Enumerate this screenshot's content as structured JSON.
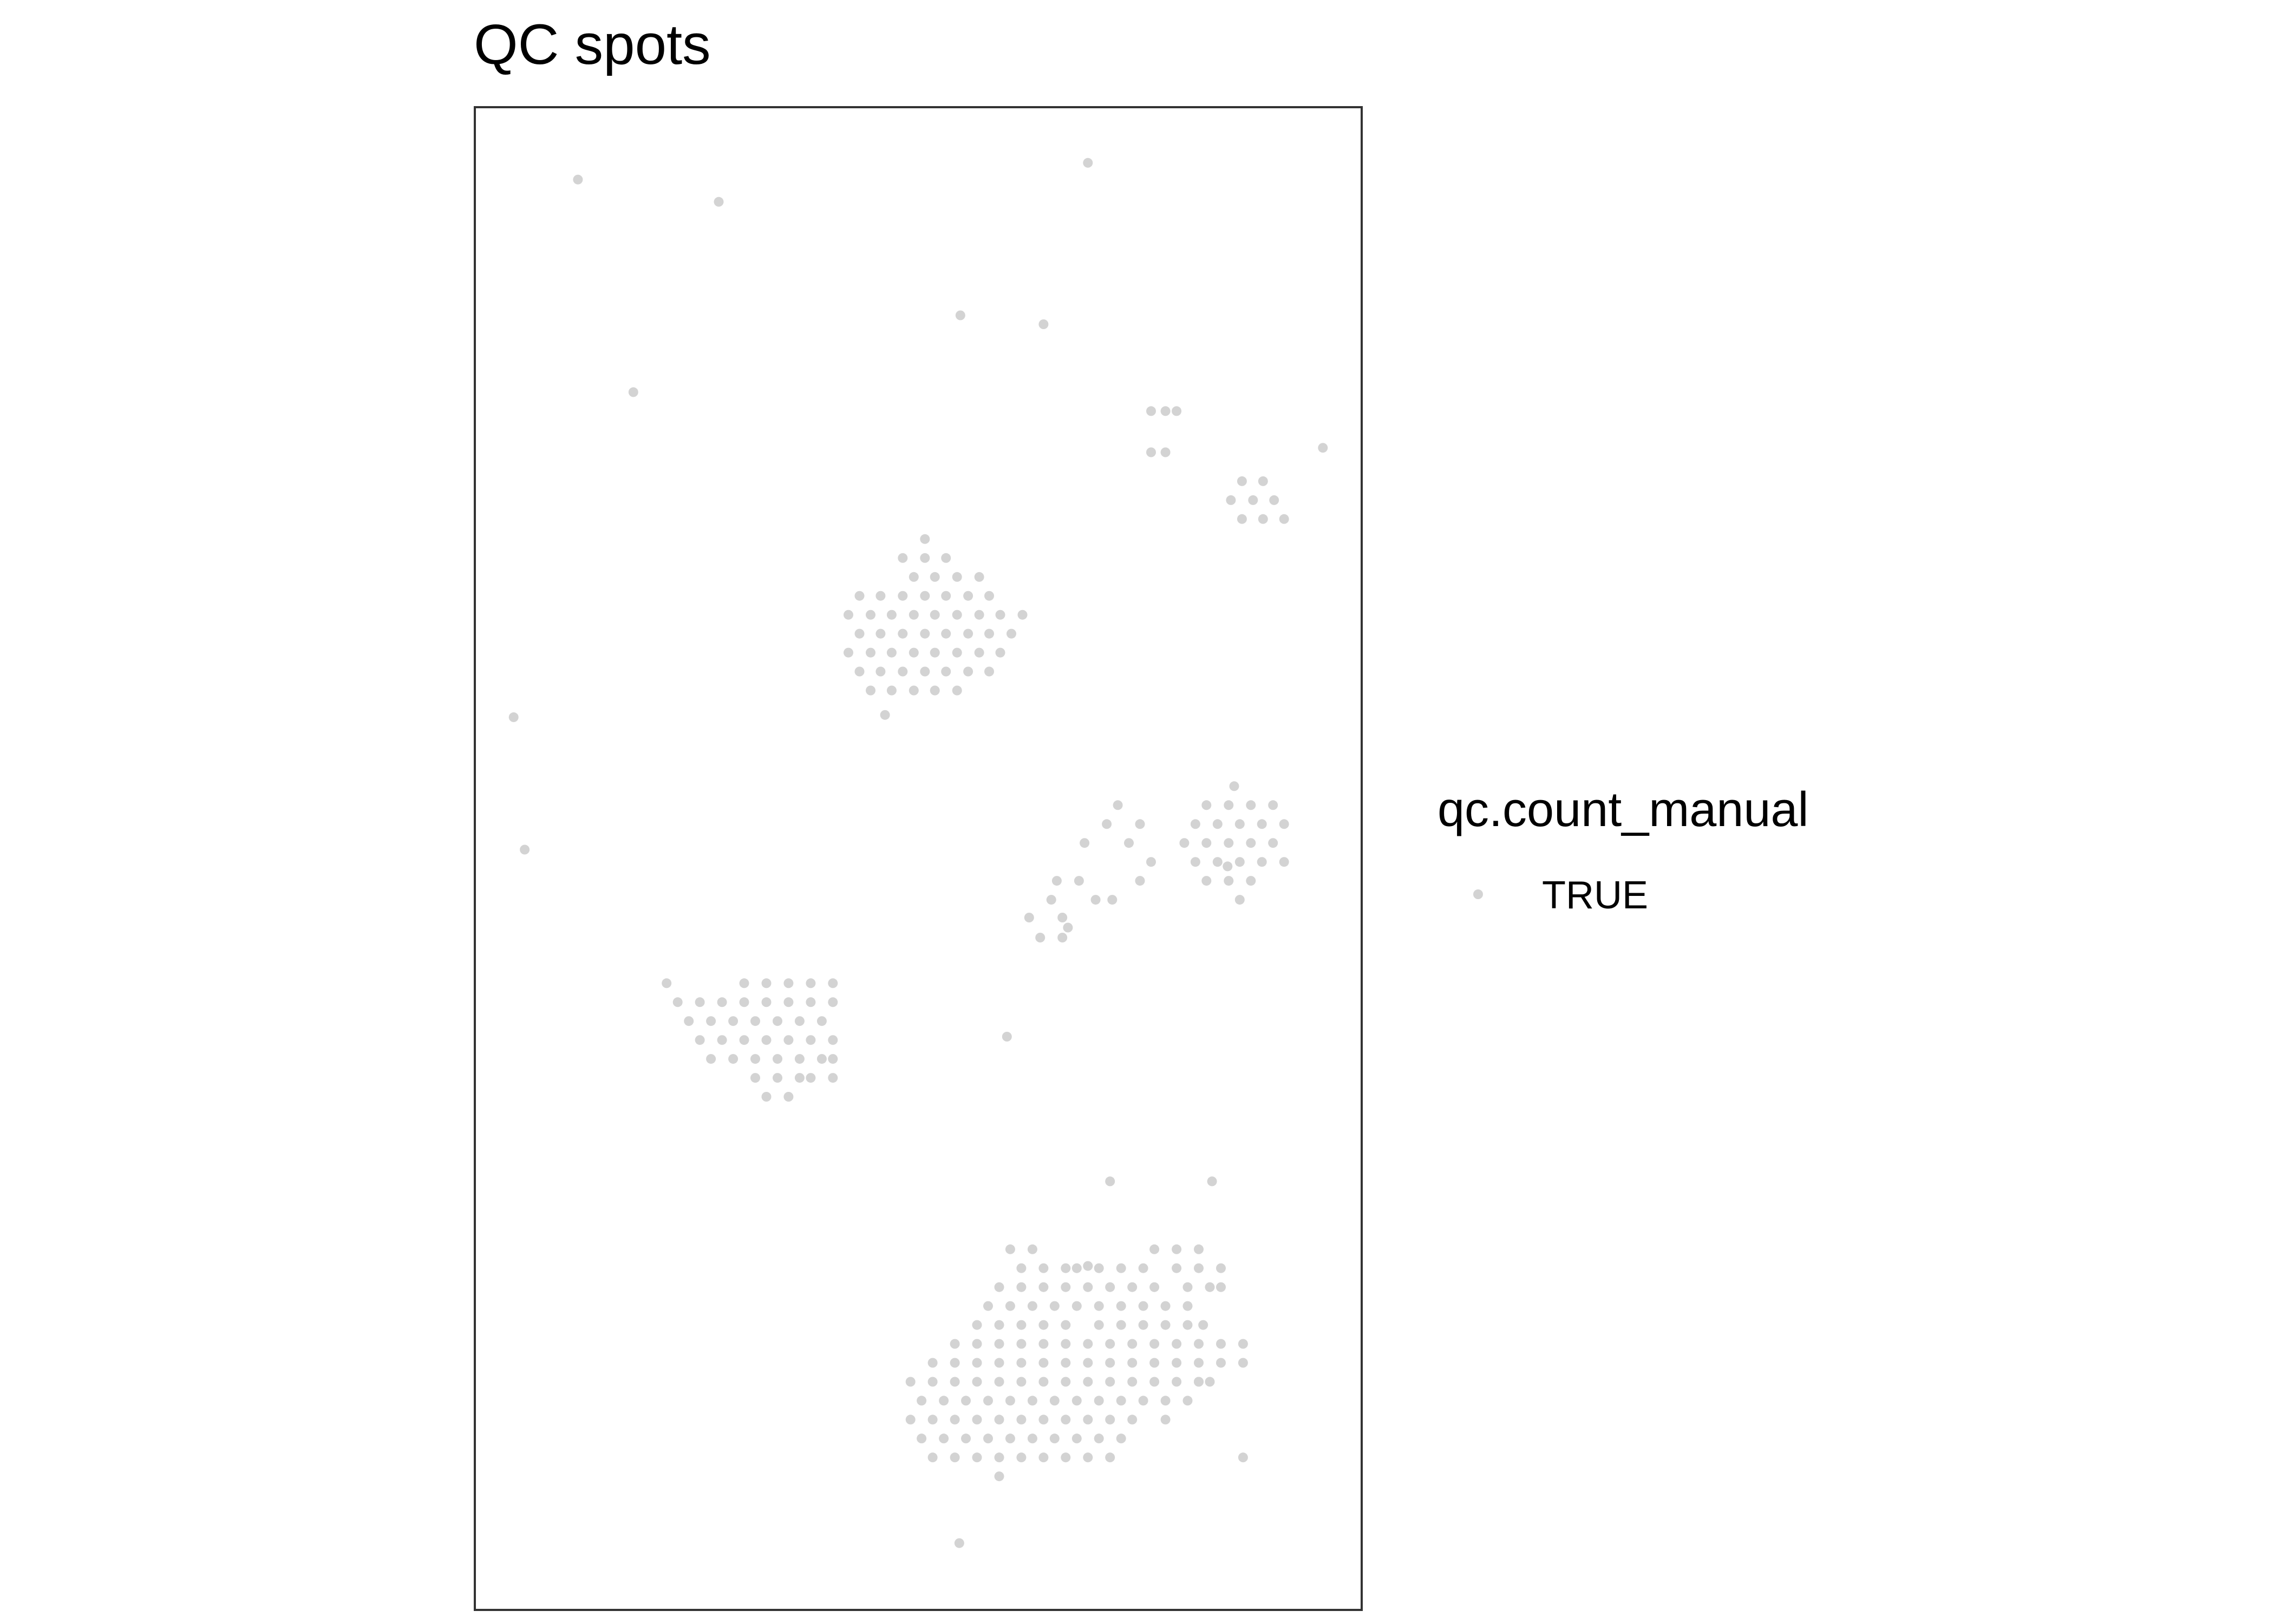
{
  "chart_data": {
    "type": "scatter",
    "title": "QC spots",
    "xlabel": "",
    "ylabel": "",
    "xlim": [
      0,
      800
    ],
    "ylim": [
      0,
      1350
    ],
    "grid": false,
    "legend_position": "right",
    "legend": {
      "title": "qc.count_manual",
      "entries": [
        "TRUE"
      ]
    },
    "point_color": "#d3d3d3",
    "series": [
      {
        "name": "TRUE",
        "points": [
          [
            93,
            1285
          ],
          [
            220,
            1265
          ],
          [
            553,
            1300
          ],
          [
            438,
            1163
          ],
          [
            143,
            1094
          ],
          [
            765,
            1044
          ],
          [
            35,
            802
          ],
          [
            45,
            683
          ],
          [
            370,
            804
          ],
          [
            679,
            668
          ],
          [
            437,
            60
          ],
          [
            665,
            385
          ],
          [
            480,
            515
          ],
          [
            692,
            1014
          ],
          [
            711,
            1014
          ],
          [
            682,
            997
          ],
          [
            702,
            997
          ],
          [
            721,
            997
          ],
          [
            692,
            980
          ],
          [
            711,
            980
          ],
          [
            730,
            980
          ],
          [
            406,
            962
          ],
          [
            386,
            945
          ],
          [
            406,
            945
          ],
          [
            425,
            945
          ],
          [
            396,
            928
          ],
          [
            415,
            928
          ],
          [
            435,
            928
          ],
          [
            455,
            928
          ],
          [
            347,
            911
          ],
          [
            366,
            911
          ],
          [
            386,
            911
          ],
          [
            406,
            911
          ],
          [
            425,
            911
          ],
          [
            445,
            911
          ],
          [
            464,
            911
          ],
          [
            337,
            894
          ],
          [
            357,
            894
          ],
          [
            376,
            894
          ],
          [
            396,
            894
          ],
          [
            415,
            894
          ],
          [
            435,
            894
          ],
          [
            455,
            894
          ],
          [
            474,
            894
          ],
          [
            494,
            894
          ],
          [
            347,
            877
          ],
          [
            366,
            877
          ],
          [
            386,
            877
          ],
          [
            406,
            877
          ],
          [
            425,
            877
          ],
          [
            445,
            877
          ],
          [
            464,
            877
          ],
          [
            484,
            877
          ],
          [
            337,
            860
          ],
          [
            357,
            860
          ],
          [
            376,
            860
          ],
          [
            396,
            860
          ],
          [
            415,
            860
          ],
          [
            435,
            860
          ],
          [
            455,
            860
          ],
          [
            474,
            860
          ],
          [
            347,
            843
          ],
          [
            366,
            843
          ],
          [
            386,
            843
          ],
          [
            406,
            843
          ],
          [
            425,
            843
          ],
          [
            445,
            843
          ],
          [
            464,
            843
          ],
          [
            357,
            826
          ],
          [
            376,
            826
          ],
          [
            396,
            826
          ],
          [
            415,
            826
          ],
          [
            435,
            826
          ],
          [
            685,
            740
          ],
          [
            660,
            723
          ],
          [
            680,
            723
          ],
          [
            700,
            723
          ],
          [
            720,
            723
          ],
          [
            650,
            706
          ],
          [
            670,
            706
          ],
          [
            690,
            706
          ],
          [
            710,
            706
          ],
          [
            730,
            706
          ],
          [
            640,
            689
          ],
          [
            660,
            689
          ],
          [
            680,
            689
          ],
          [
            700,
            689
          ],
          [
            720,
            689
          ],
          [
            650,
            672
          ],
          [
            670,
            672
          ],
          [
            690,
            672
          ],
          [
            710,
            672
          ],
          [
            730,
            672
          ],
          [
            660,
            655
          ],
          [
            680,
            655
          ],
          [
            700,
            655
          ],
          [
            690,
            638
          ],
          [
            600,
            655
          ],
          [
            610,
            672
          ],
          [
            590,
            689
          ],
          [
            600,
            706
          ],
          [
            580,
            723
          ],
          [
            570,
            706
          ],
          [
            550,
            689
          ],
          [
            525,
            655
          ],
          [
            545,
            655
          ],
          [
            560,
            638
          ],
          [
            575,
            638
          ],
          [
            500,
            622
          ],
          [
            530,
            622
          ],
          [
            520,
            638
          ],
          [
            535,
            613
          ],
          [
            510,
            604
          ],
          [
            530,
            604
          ],
          [
            173,
            563
          ],
          [
            183,
            546
          ],
          [
            243,
            563
          ],
          [
            263,
            563
          ],
          [
            283,
            563
          ],
          [
            303,
            563
          ],
          [
            323,
            563
          ],
          [
            203,
            546
          ],
          [
            223,
            546
          ],
          [
            243,
            546
          ],
          [
            263,
            546
          ],
          [
            283,
            546
          ],
          [
            303,
            546
          ],
          [
            323,
            546
          ],
          [
            193,
            529
          ],
          [
            213,
            529
          ],
          [
            233,
            529
          ],
          [
            253,
            529
          ],
          [
            273,
            529
          ],
          [
            293,
            529
          ],
          [
            313,
            529
          ],
          [
            323,
            512
          ],
          [
            203,
            512
          ],
          [
            223,
            512
          ],
          [
            243,
            512
          ],
          [
            263,
            512
          ],
          [
            283,
            512
          ],
          [
            303,
            512
          ],
          [
            213,
            495
          ],
          [
            233,
            495
          ],
          [
            253,
            495
          ],
          [
            273,
            495
          ],
          [
            293,
            495
          ],
          [
            313,
            495
          ],
          [
            323,
            495
          ],
          [
            253,
            478
          ],
          [
            273,
            478
          ],
          [
            293,
            478
          ],
          [
            303,
            478
          ],
          [
            323,
            478
          ],
          [
            283,
            461
          ],
          [
            263,
            461
          ],
          [
            573,
            385
          ],
          [
            553,
            309
          ],
          [
            513,
            1155
          ],
          [
            610,
            1077
          ],
          [
            623,
            1077
          ],
          [
            633,
            1077
          ],
          [
            610,
            1040
          ],
          [
            623,
            1040
          ],
          [
            503,
            324
          ],
          [
            483,
            324
          ],
          [
            493,
            307
          ],
          [
            513,
            307
          ],
          [
            533,
            307
          ],
          [
            543,
            307
          ],
          [
            563,
            307
          ],
          [
            583,
            307
          ],
          [
            473,
            290
          ],
          [
            493,
            290
          ],
          [
            513,
            290
          ],
          [
            533,
            290
          ],
          [
            553,
            290
          ],
          [
            573,
            290
          ],
          [
            593,
            290
          ],
          [
            613,
            290
          ],
          [
            463,
            273
          ],
          [
            483,
            273
          ],
          [
            503,
            273
          ],
          [
            523,
            273
          ],
          [
            543,
            273
          ],
          [
            563,
            273
          ],
          [
            583,
            273
          ],
          [
            603,
            273
          ],
          [
            623,
            273
          ],
          [
            643,
            273
          ],
          [
            453,
            256
          ],
          [
            473,
            256
          ],
          [
            493,
            256
          ],
          [
            513,
            256
          ],
          [
            533,
            256
          ],
          [
            563,
            256
          ],
          [
            583,
            256
          ],
          [
            603,
            256
          ],
          [
            623,
            256
          ],
          [
            643,
            256
          ],
          [
            657,
            256
          ],
          [
            433,
            239
          ],
          [
            453,
            239
          ],
          [
            473,
            239
          ],
          [
            493,
            239
          ],
          [
            513,
            239
          ],
          [
            533,
            239
          ],
          [
            553,
            239
          ],
          [
            573,
            239
          ],
          [
            593,
            239
          ],
          [
            613,
            239
          ],
          [
            633,
            239
          ],
          [
            653,
            239
          ],
          [
            673,
            239
          ],
          [
            693,
            239
          ],
          [
            413,
            222
          ],
          [
            433,
            222
          ],
          [
            453,
            222
          ],
          [
            473,
            222
          ],
          [
            493,
            222
          ],
          [
            513,
            222
          ],
          [
            533,
            222
          ],
          [
            553,
            222
          ],
          [
            573,
            222
          ],
          [
            593,
            222
          ],
          [
            613,
            222
          ],
          [
            633,
            222
          ],
          [
            653,
            222
          ],
          [
            673,
            222
          ],
          [
            693,
            222
          ],
          [
            393,
            205
          ],
          [
            413,
            205
          ],
          [
            433,
            205
          ],
          [
            453,
            205
          ],
          [
            473,
            205
          ],
          [
            493,
            205
          ],
          [
            513,
            205
          ],
          [
            533,
            205
          ],
          [
            553,
            205
          ],
          [
            573,
            205
          ],
          [
            593,
            205
          ],
          [
            613,
            205
          ],
          [
            633,
            205
          ],
          [
            653,
            205
          ],
          [
            663,
            205
          ],
          [
            403,
            188
          ],
          [
            423,
            188
          ],
          [
            443,
            188
          ],
          [
            463,
            188
          ],
          [
            483,
            188
          ],
          [
            503,
            188
          ],
          [
            523,
            188
          ],
          [
            543,
            188
          ],
          [
            563,
            188
          ],
          [
            583,
            188
          ],
          [
            603,
            188
          ],
          [
            623,
            188
          ],
          [
            643,
            188
          ],
          [
            393,
            171
          ],
          [
            413,
            171
          ],
          [
            433,
            171
          ],
          [
            453,
            171
          ],
          [
            473,
            171
          ],
          [
            493,
            171
          ],
          [
            513,
            171
          ],
          [
            533,
            171
          ],
          [
            553,
            171
          ],
          [
            573,
            171
          ],
          [
            593,
            171
          ],
          [
            403,
            154
          ],
          [
            423,
            154
          ],
          [
            443,
            154
          ],
          [
            463,
            154
          ],
          [
            483,
            154
          ],
          [
            503,
            154
          ],
          [
            523,
            154
          ],
          [
            543,
            154
          ],
          [
            563,
            154
          ],
          [
            583,
            154
          ],
          [
            413,
            137
          ],
          [
            433,
            137
          ],
          [
            453,
            137
          ],
          [
            473,
            137
          ],
          [
            493,
            137
          ],
          [
            513,
            137
          ],
          [
            533,
            137
          ],
          [
            553,
            137
          ],
          [
            573,
            137
          ],
          [
            473,
            120
          ],
          [
            693,
            137
          ],
          [
            623,
            171
          ],
          [
            653,
            205
          ],
          [
            643,
            290
          ],
          [
            663,
            290
          ],
          [
            603,
            307
          ],
          [
            613,
            324
          ],
          [
            633,
            324
          ],
          [
            653,
            324
          ],
          [
            673,
            290
          ],
          [
            673,
            307
          ],
          [
            633,
            307
          ],
          [
            653,
            307
          ]
        ]
      }
    ]
  }
}
